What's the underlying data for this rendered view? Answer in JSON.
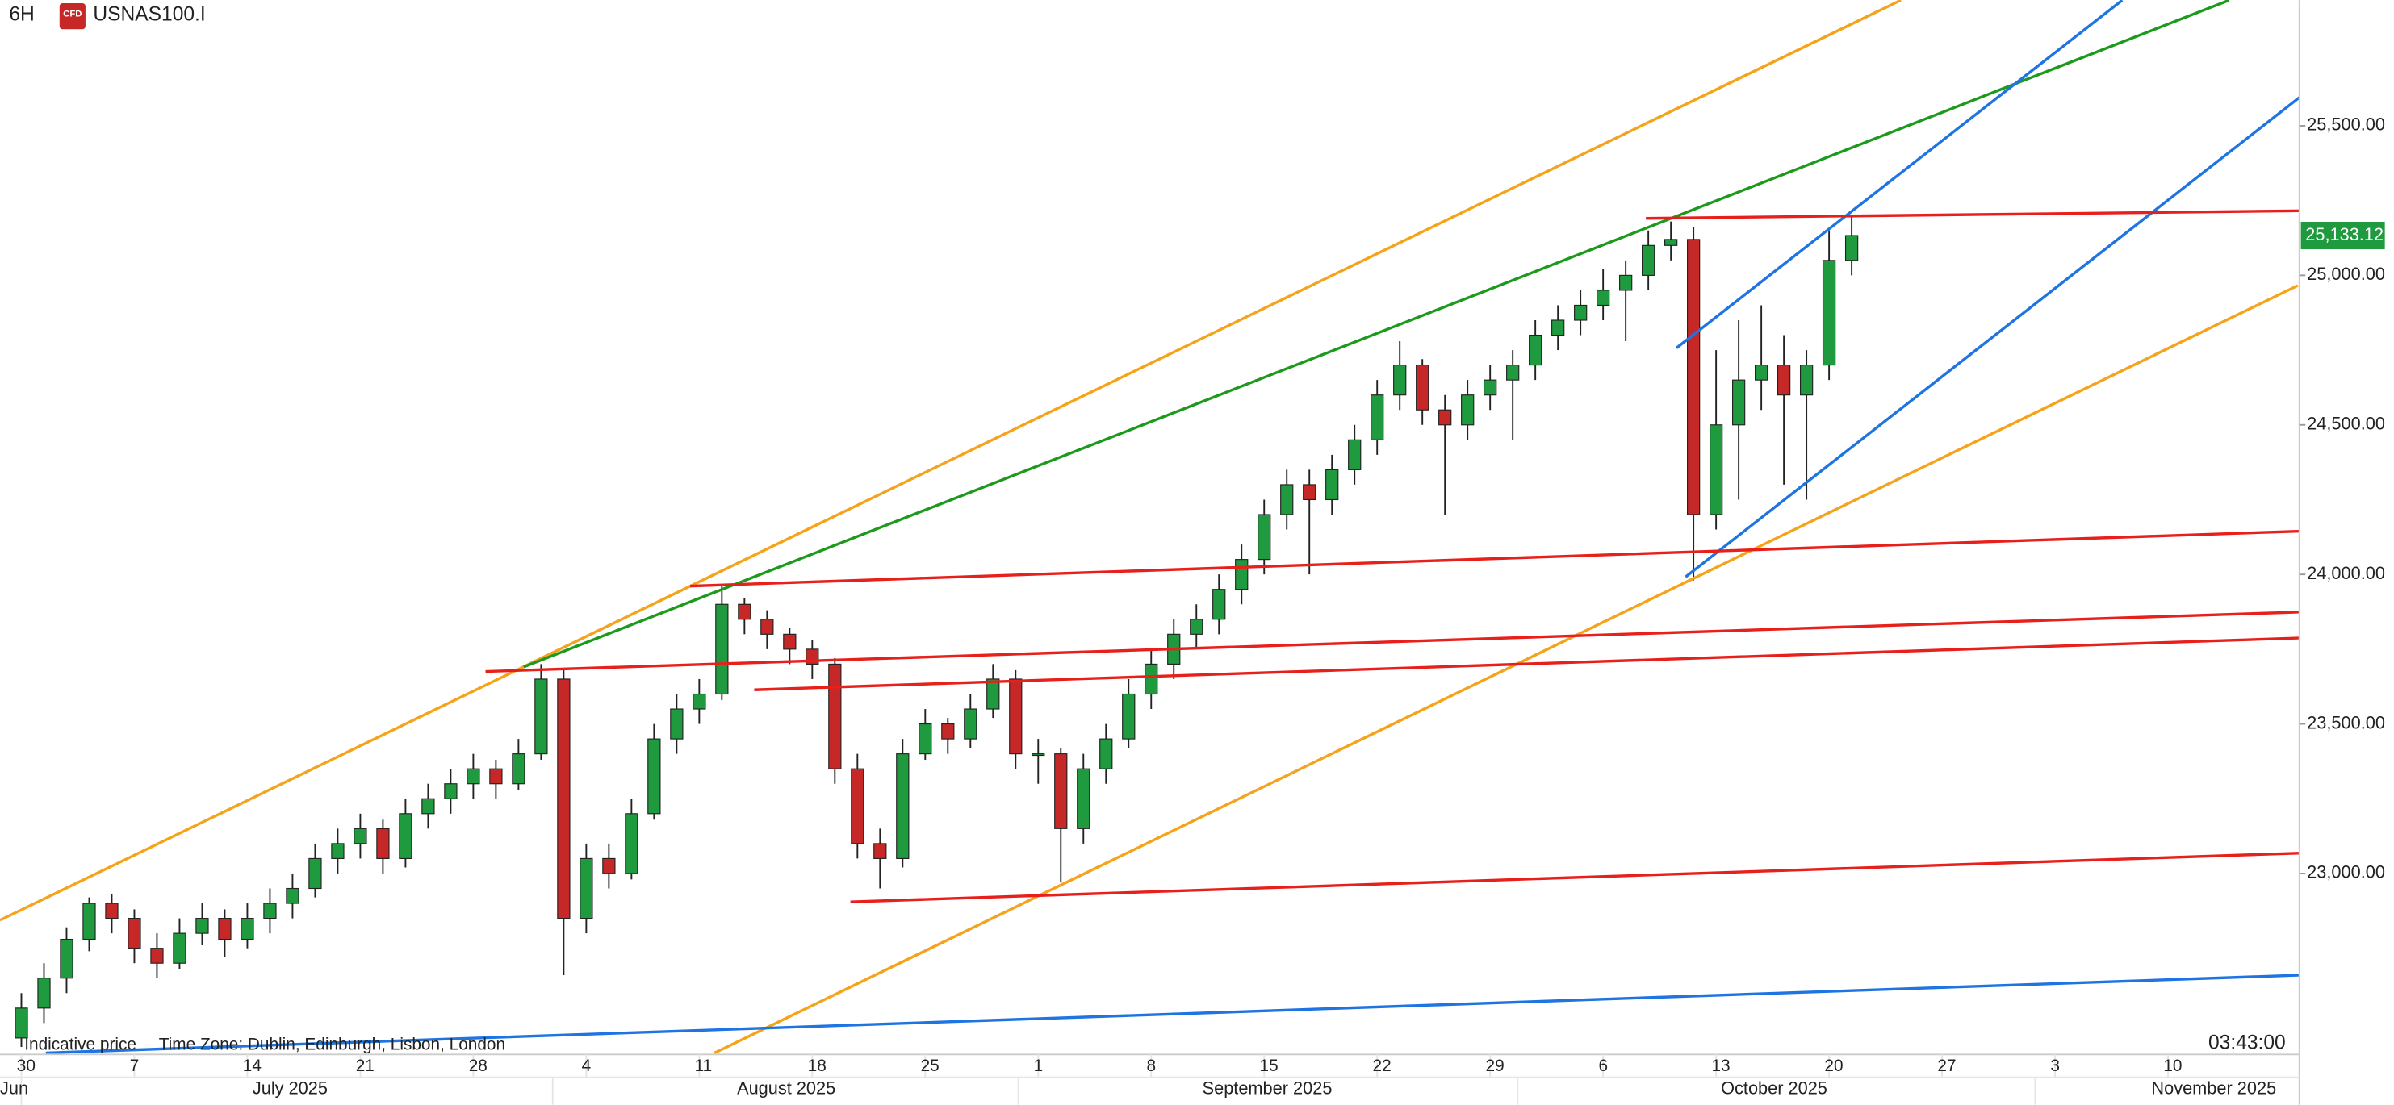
{
  "header": {
    "timeframe": "6H",
    "icon": "CFD",
    "symbol": "USNAS100.I"
  },
  "footer": {
    "price_note": "Indicative price",
    "timezone": "Time Zone: Dublin, Edinburgh, Lisbon, London",
    "clock": "03:43:00"
  },
  "chart_data": {
    "type": "candlestick",
    "up_color": "#1f9a3e",
    "down_color": "#c62828",
    "ylim": [
      22400,
      25920
    ],
    "yticks": [
      {
        "value": 23000,
        "label": "23,000.00"
      },
      {
        "value": 23500,
        "label": "23,500.00"
      },
      {
        "value": 24000,
        "label": "24,000.00"
      },
      {
        "value": 24500,
        "label": "24,500.00"
      },
      {
        "value": 25000,
        "label": "25,000.00"
      },
      {
        "value": 25500,
        "label": "25,500.00"
      }
    ],
    "last_price": {
      "value": 25133.12,
      "label": "25,133.12"
    },
    "months": [
      "Jun",
      "July 2025",
      "August 2025",
      "September 2025",
      "October 2025",
      "November 2025"
    ],
    "categories": [
      "30",
      null,
      null,
      null,
      null,
      "7",
      null,
      null,
      null,
      null,
      "14",
      null,
      null,
      null,
      null,
      "21",
      null,
      null,
      null,
      null,
      "28",
      null,
      null,
      null,
      null,
      "4",
      null,
      null,
      null,
      null,
      "11",
      null,
      null,
      null,
      null,
      "18",
      null,
      null,
      null,
      null,
      "25",
      null,
      null,
      null,
      null,
      "1",
      null,
      null,
      null,
      null,
      "8",
      null,
      null,
      null,
      null,
      "15",
      null,
      null,
      null,
      null,
      "22",
      null,
      null,
      null,
      null,
      "29",
      null,
      null,
      null,
      null,
      "6",
      null,
      null,
      null,
      null,
      "13",
      null,
      null,
      null,
      null,
      "20",
      null,
      null,
      null,
      null,
      "27",
      null,
      null,
      null,
      null,
      "3",
      null,
      null,
      null,
      null,
      "10",
      null
    ],
    "open": [
      22450,
      22550,
      22650,
      22780,
      22900,
      22850,
      22750,
      22700,
      22800,
      22850,
      22780,
      22850,
      22900,
      22950,
      23050,
      23100,
      23150,
      23050,
      23200,
      23250,
      23300,
      23350,
      23300,
      23400,
      23650,
      22850,
      23050,
      23000,
      23200,
      23450,
      23550,
      23600,
      23900,
      23850,
      23800,
      23750,
      23700,
      23350,
      23100,
      23050,
      23400,
      23500,
      23450,
      23550,
      23650,
      23400,
      23400,
      23150,
      23350,
      23450,
      23600,
      23700,
      23800,
      23850,
      23950,
      24050,
      24200,
      24300,
      24250,
      24350,
      24450,
      24600,
      24700,
      24550,
      24500,
      24600,
      24650,
      24700,
      24800,
      24850,
      24900,
      24950,
      25000,
      25100,
      25120,
      24200,
      24500,
      24650,
      24700,
      24600,
      24700,
      25050,
      null,
      null,
      null,
      null,
      null,
      null,
      null,
      null,
      null,
      null,
      null,
      null,
      null,
      null,
      null
    ],
    "high": [
      22600,
      22700,
      22820,
      22920,
      22930,
      22880,
      22800,
      22850,
      22900,
      22880,
      22900,
      22950,
      23000,
      23100,
      23150,
      23200,
      23180,
      23250,
      23300,
      23350,
      23400,
      23380,
      23450,
      23700,
      23680,
      23100,
      23100,
      23250,
      23500,
      23600,
      23650,
      23960,
      23920,
      23880,
      23820,
      23780,
      23720,
      23400,
      23150,
      23450,
      23550,
      23520,
      23600,
      23700,
      23680,
      23450,
      23420,
      23400,
      23500,
      23650,
      23750,
      23850,
      23900,
      24000,
      24100,
      24250,
      24350,
      24350,
      24400,
      24500,
      24650,
      24780,
      24720,
      24600,
      24650,
      24700,
      24750,
      24850,
      24900,
      24950,
      25020,
      25050,
      25150,
      25180,
      25160,
      24750,
      24850,
      24900,
      24800,
      24750,
      25150,
      25200,
      null,
      null,
      null,
      null,
      null,
      null,
      null,
      null,
      null,
      null,
      null,
      null,
      null,
      null,
      null
    ],
    "low": [
      22420,
      22500,
      22600,
      22740,
      22800,
      22700,
      22650,
      22680,
      22760,
      22720,
      22750,
      22800,
      22850,
      22920,
      23000,
      23050,
      23000,
      23020,
      23150,
      23200,
      23250,
      23250,
      23280,
      23380,
      22660,
      22800,
      22950,
      22980,
      23180,
      23400,
      23500,
      23580,
      23800,
      23750,
      23700,
      23650,
      23300,
      23050,
      22950,
      23020,
      23380,
      23400,
      23420,
      23520,
      23350,
      23300,
      22970,
      23100,
      23300,
      23420,
      23550,
      23650,
      23750,
      23800,
      23900,
      24000,
      24150,
      24000,
      24200,
      24300,
      24400,
      24550,
      24500,
      24200,
      24450,
      24550,
      24450,
      24650,
      24750,
      24800,
      24850,
      24780,
      24950,
      25050,
      23980,
      24150,
      24250,
      24550,
      24300,
      24250,
      24650,
      25000,
      null,
      null,
      null,
      null,
      null,
      null,
      null,
      null,
      null,
      null,
      null,
      null,
      null,
      null,
      null
    ],
    "close": [
      22550,
      22650,
      22780,
      22900,
      22850,
      22750,
      22700,
      22800,
      22850,
      22780,
      22850,
      22900,
      22950,
      23050,
      23100,
      23150,
      23050,
      23200,
      23250,
      23300,
      23350,
      23300,
      23400,
      23650,
      22850,
      23050,
      23000,
      23200,
      23450,
      23550,
      23600,
      23900,
      23850,
      23800,
      23750,
      23700,
      23350,
      23100,
      23050,
      23400,
      23500,
      23450,
      23550,
      23650,
      23400,
      23400,
      23150,
      23350,
      23450,
      23600,
      23700,
      23800,
      23850,
      23950,
      24050,
      24200,
      24300,
      24250,
      24350,
      24450,
      24600,
      24700,
      24550,
      24500,
      24600,
      24650,
      24700,
      24800,
      24850,
      24900,
      24950,
      25000,
      25100,
      25120,
      24200,
      24500,
      24650,
      24700,
      24600,
      24700,
      25050,
      25133.12,
      null,
      null,
      null,
      null,
      null,
      null,
      null,
      null,
      null,
      null,
      null,
      null,
      null,
      null,
      null
    ]
  }
}
